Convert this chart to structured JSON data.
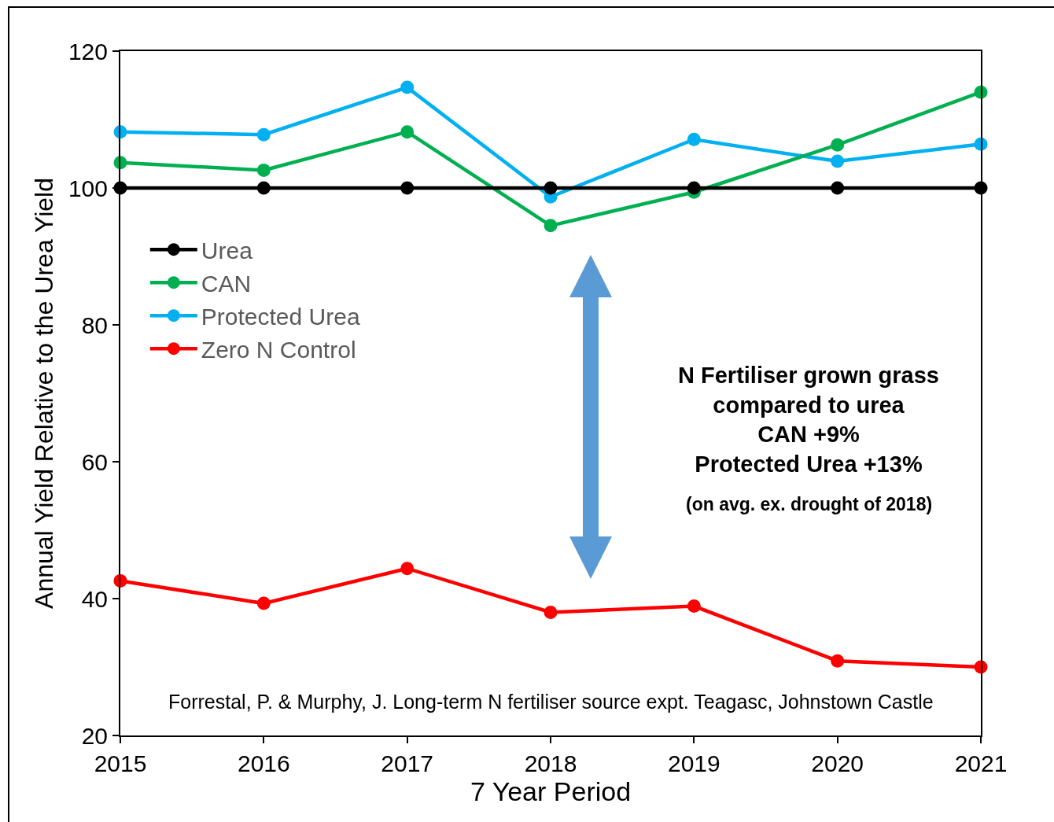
{
  "chart_data": {
    "type": "line",
    "xlabel": "7 Year Period",
    "ylabel": "Annual Yield Relative to the Urea Yield",
    "x": [
      2015,
      2016,
      2017,
      2018,
      2019,
      2020,
      2021
    ],
    "xlim": [
      2015,
      2021
    ],
    "xticks": [
      2015,
      2016,
      2017,
      2018,
      2019,
      2020,
      2021
    ],
    "ylim": [
      20,
      120
    ],
    "yticks": [
      20,
      40,
      60,
      80,
      100,
      120
    ],
    "grid": false,
    "legend": "left",
    "marker": "circle",
    "line_style": "solid",
    "series": [
      {
        "name": "Urea",
        "color": "#000000",
        "values": [
          100,
          100,
          100,
          100,
          100,
          100,
          100
        ]
      },
      {
        "name": "CAN",
        "color": "#00b050",
        "values": [
          103.7,
          102.6,
          108.2,
          94.5,
          99.4,
          106.3,
          114.0
        ]
      },
      {
        "name": "Protected Urea",
        "color": "#00b0f0",
        "values": [
          108.2,
          107.8,
          114.7,
          98.7,
          107.1,
          103.9,
          106.4
        ]
      },
      {
        "name": "Zero N Control",
        "color": "#ff0000",
        "values": [
          42.6,
          39.3,
          44.4,
          38.0,
          38.9,
          30.9,
          30.0
        ]
      }
    ],
    "annotations": [
      "N Fertiliser grown grass\ncompared to urea\nCAN +9%\nProtected Urea +13%",
      "(on avg. ex. drought of 2018)",
      "Forrestal, P. & Murphy, J. Long-term N fertiliser source expt. Teagasc, Johnstown Castle"
    ]
  }
}
